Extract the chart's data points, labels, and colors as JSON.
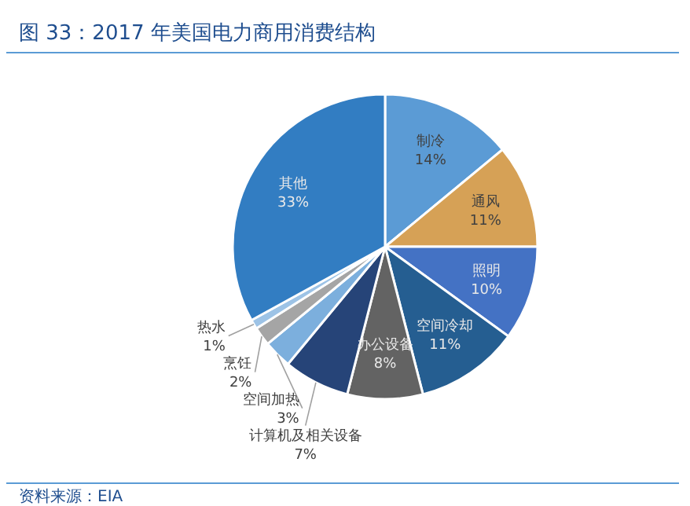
{
  "chart_data": {
    "type": "pie",
    "title": "图 33：2017 年美国电力商用消费结构",
    "categories": [
      "制冷",
      "通风",
      "照明",
      "空间冷却",
      "办公设备",
      "计算机及相关设备",
      "空间加热",
      "烹饪",
      "热水",
      "其他"
    ],
    "values": [
      14,
      11,
      10,
      11,
      8,
      7,
      3,
      2,
      1,
      33
    ],
    "value_labels": [
      "14%",
      "11%",
      "10%",
      "11%",
      "8%",
      "7%",
      "3%",
      "2%",
      "1%",
      "33%"
    ],
    "colors": [
      "#5b9bd5",
      "#d6a156",
      "#4472c4",
      "#255e91",
      "#636363",
      "#264478",
      "#7cafdd",
      "#a5a5a5",
      "#9dc3e6",
      "#327dc2"
    ],
    "annotations": [
      "资料来源：EIA"
    ]
  }
}
